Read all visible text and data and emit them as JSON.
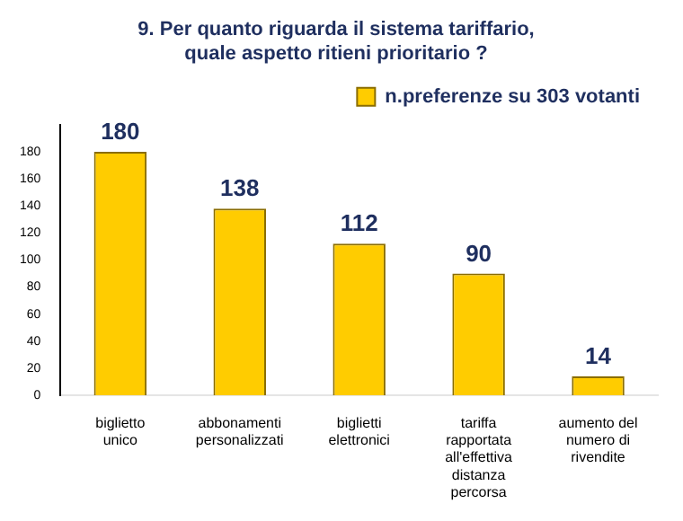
{
  "chart_data": {
    "type": "bar",
    "title": "9. Per quanto riguarda il sistema tariffario,\nquale aspetto ritieni prioritario ?",
    "categories": [
      "biglietto unico",
      "abbonamenti personalizzati",
      "biglietti elettronici",
      "tariffa rapportata all'effettiva distanza percorsa",
      "aumento del numero di rivendite"
    ],
    "series": [
      {
        "name": "n.preferenze su 303 votanti",
        "color": "#ffcc00",
        "values": [
          180,
          138,
          112,
          90,
          14
        ]
      }
    ],
    "ylim": [
      0,
      200
    ],
    "yticks": [
      0,
      20,
      40,
      60,
      80,
      100,
      120,
      140,
      160,
      180
    ],
    "data_labels": true,
    "legend": "top right",
    "grid": false
  }
}
